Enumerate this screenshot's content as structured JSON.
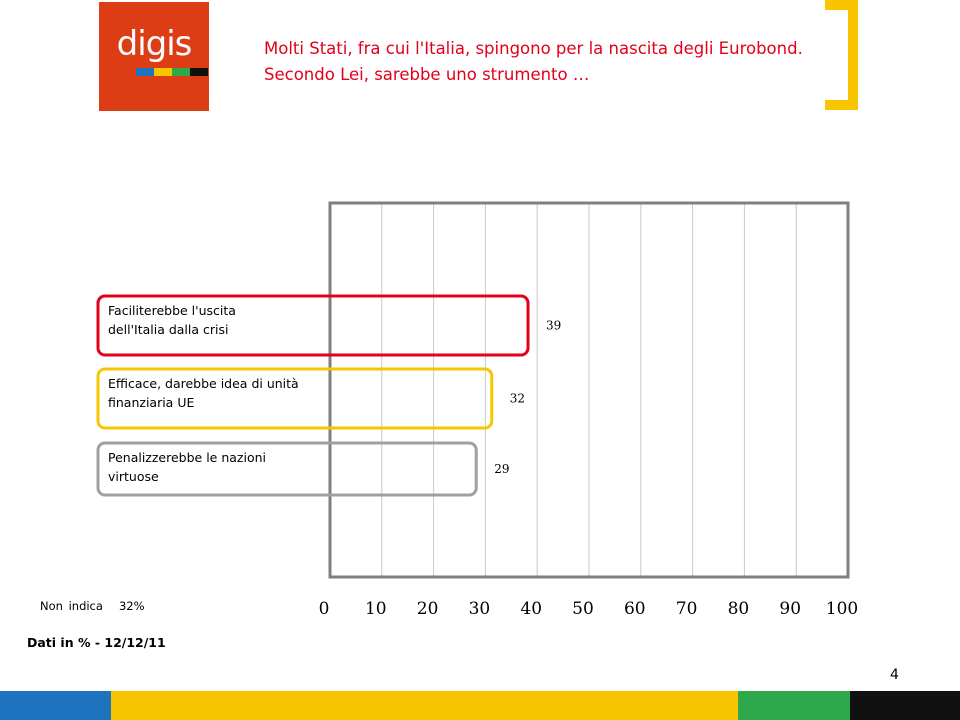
{
  "logo": {
    "text": "digis",
    "color": "#dc3d14",
    "stripe_colors": [
      "#1e73be",
      "#f7c600",
      "#2da84a",
      "#111111"
    ]
  },
  "header": {
    "title": "Molti Stati, fra cui l'Italia, spingono per la nascita degli Eurobond. Secondo Lei, sarebbe uno strumento …",
    "title_color": "#e3001b",
    "bracket_color": "#f7c600"
  },
  "chart_data": {
    "type": "bar",
    "orientation": "horizontal",
    "categories": [
      "Faciliterebbe l'uscita dell'Italia dalla crisi",
      "Efficace, darebbe idea di unità finanziaria UE",
      "Penalizzerebbe le nazioni virtuose"
    ],
    "category_lines": [
      [
        "Faciliterebbe l'uscita",
        "dell'Italia dalla crisi"
      ],
      [
        "Efficace, darebbe idea di unità",
        "finanziaria UE"
      ],
      [
        "Penalizzerebbe le nazioni",
        "virtuose"
      ]
    ],
    "values": [
      39,
      32,
      29
    ],
    "value_labels": [
      "39",
      "32",
      "29"
    ],
    "bar_outline_colors": [
      "#e3001b",
      "#f7c600",
      "#a0a0a0"
    ],
    "xlim": [
      0,
      100
    ],
    "xticks": [
      "0",
      "10",
      "20",
      "30",
      "40",
      "50",
      "60",
      "70",
      "80",
      "90",
      "100"
    ],
    "grid": true
  },
  "notes": {
    "non_indica_label": "Non indica",
    "non_indica_value": "32%"
  },
  "source": "Dati in % - 12/12/11",
  "page_number": "4",
  "footer_colors": [
    "#1e73be",
    "#f7c600",
    "#2da84a",
    "#111111"
  ]
}
